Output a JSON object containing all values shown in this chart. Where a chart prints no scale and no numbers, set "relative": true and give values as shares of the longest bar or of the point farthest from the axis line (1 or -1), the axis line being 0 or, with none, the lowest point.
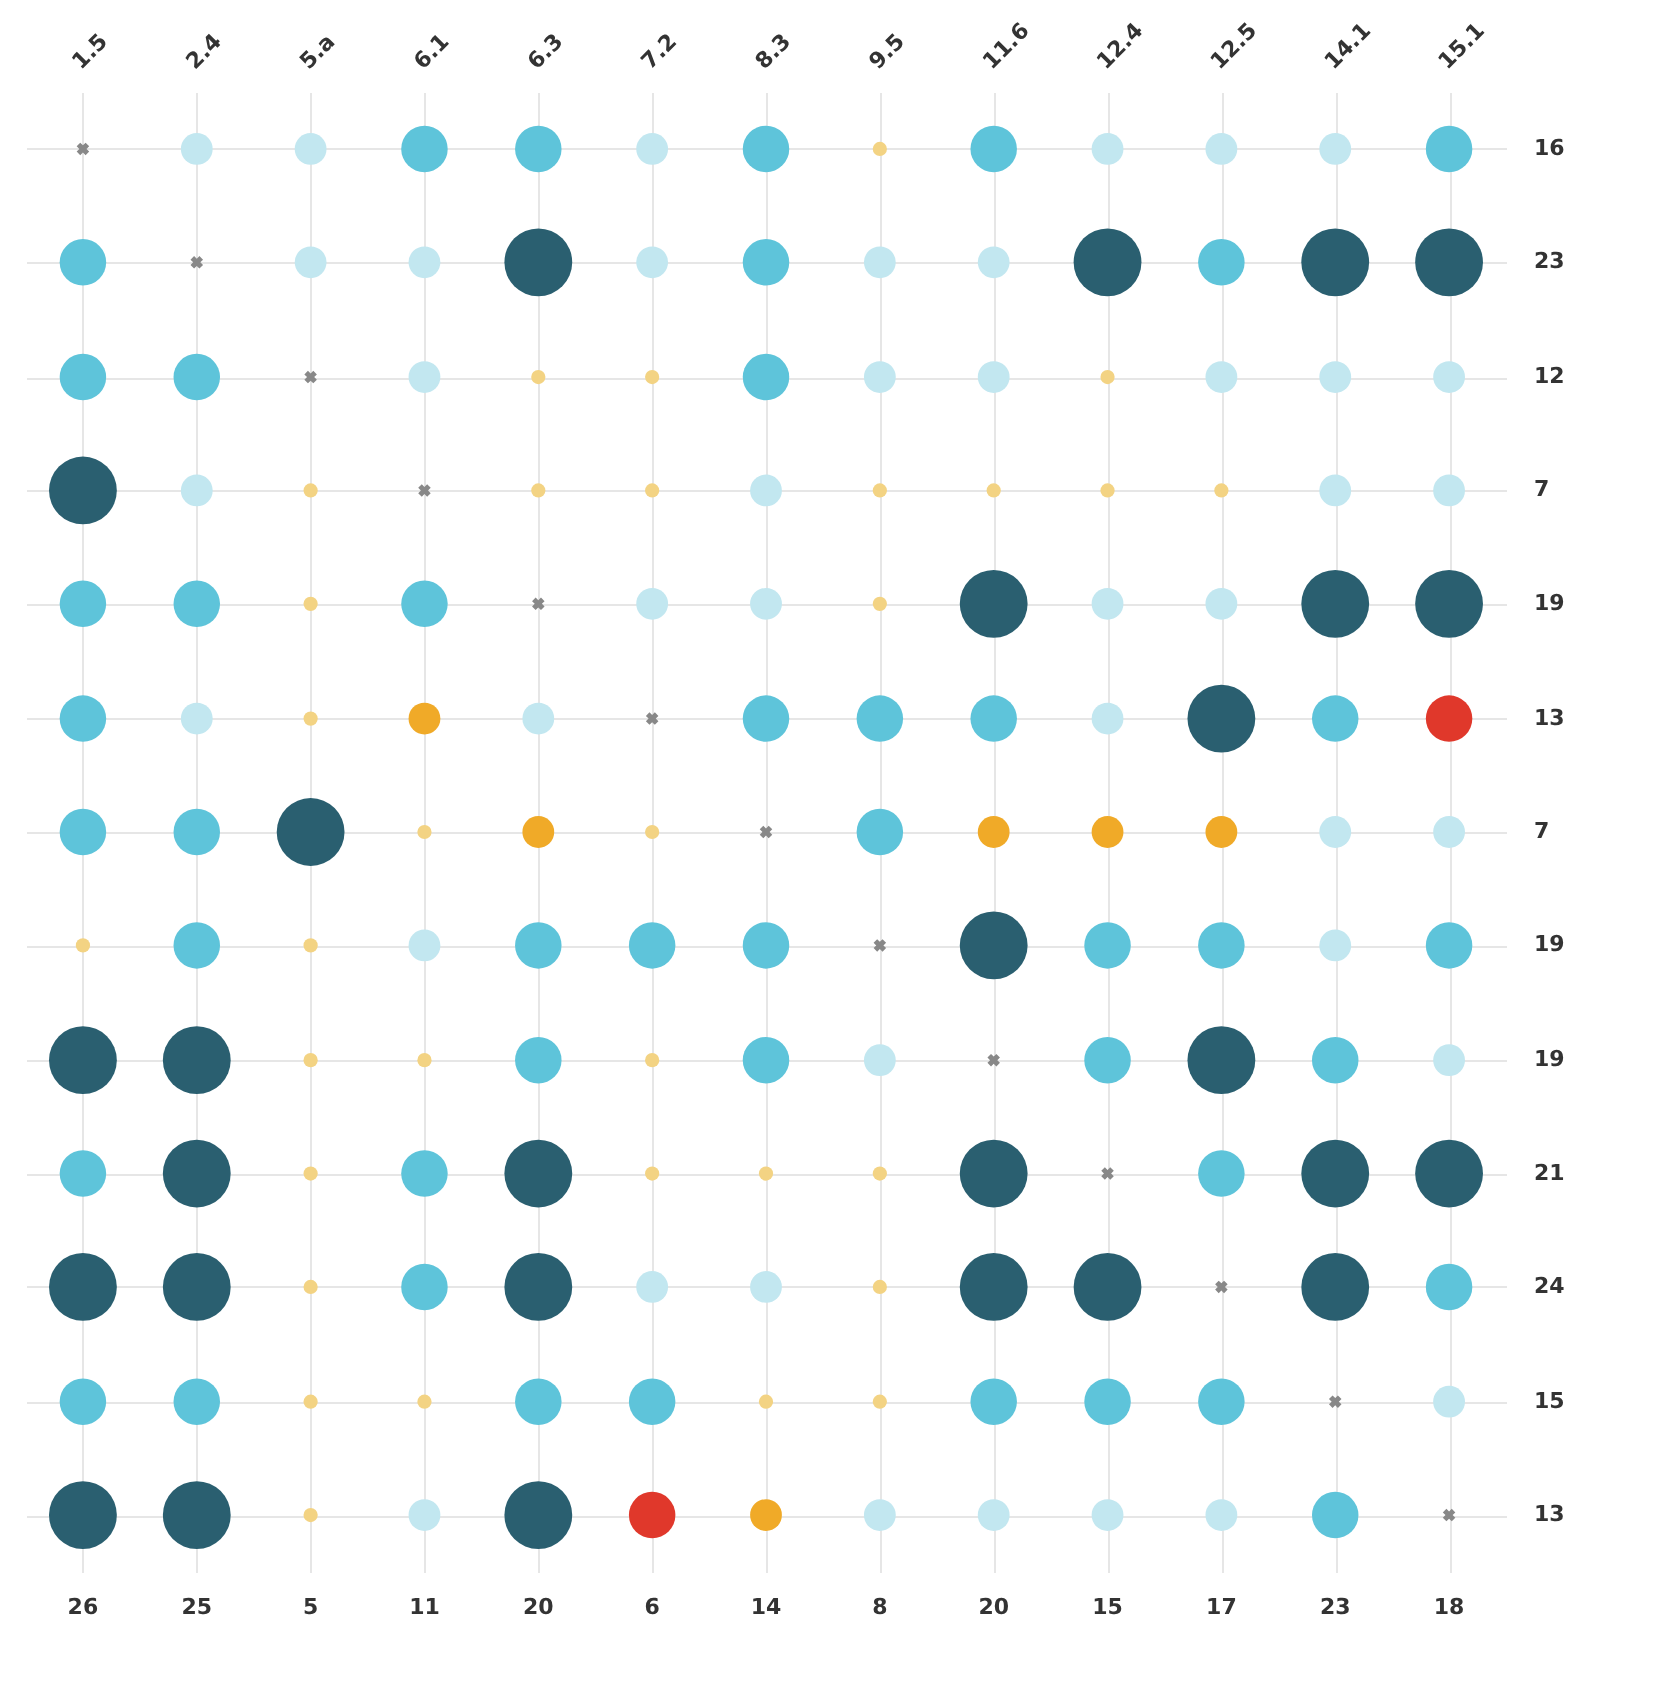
{
  "chart_data": {
    "type": "bubble",
    "categories": [
      "1.5",
      "2.4",
      "5.a",
      "6.1",
      "6.3",
      "7.2",
      "8.3",
      "9.5",
      "11.6",
      "12.4",
      "12.5",
      "14.1",
      "15.1"
    ],
    "relative": true,
    "series": [
      {
        "color": "#2a5f70",
        "x": [
          "6.3",
          "12.4",
          "14.1",
          "15.1",
          "1.5",
          "11.6",
          "14.1",
          "15.1",
          "12.5",
          "5.a",
          "11.6",
          "1.5",
          "2.4",
          "12.5",
          "2.4",
          "6.3",
          "11.6",
          "14.1",
          "15.1",
          "1.5",
          "2.4",
          "6.3",
          "11.6",
          "12.4",
          "14.1",
          "1.5",
          "2.4",
          "6.3"
        ],
        "values": [
          0.917,
          0.917,
          0.917,
          0.917,
          0.75,
          0.667,
          0.667,
          0.667,
          0.583,
          0.5,
          0.417,
          0.333,
          0.333,
          0.333,
          0.25,
          0.25,
          0.25,
          0.25,
          0.25,
          0.167,
          0.167,
          0.167,
          0.167,
          0.167,
          0.167,
          0,
          0,
          0
        ],
        "sizes": [
          1,
          1,
          1,
          1,
          1,
          1,
          1,
          1,
          1,
          1,
          1,
          1,
          1,
          1,
          1,
          1,
          1,
          1,
          1,
          1,
          1,
          1,
          1,
          1,
          1,
          1,
          1,
          1
        ]
      },
      {
        "color": "#5ec4da",
        "x": [
          "6.1",
          "6.3",
          "8.3",
          "11.6",
          "15.1",
          "1.5",
          "8.3",
          "12.5",
          "1.5",
          "2.4",
          "8.3",
          "1.5",
          "2.4",
          "6.1",
          "1.5",
          "8.3",
          "9.5",
          "11.6",
          "14.1",
          "1.5",
          "2.4",
          "9.5",
          "2.4",
          "6.3",
          "7.2",
          "8.3",
          "12.4",
          "12.5",
          "15.1",
          "6.3",
          "8.3",
          "12.4",
          "14.1",
          "1.5",
          "6.1",
          "12.5",
          "6.1",
          "15.1",
          "1.5",
          "2.4",
          "6.3",
          "7.2",
          "11.6",
          "12.4",
          "12.5",
          "14.1"
        ],
        "values": [
          1,
          1,
          1,
          1,
          1,
          0.917,
          0.917,
          0.917,
          0.833,
          0.833,
          0.833,
          0.667,
          0.667,
          0.667,
          0.583,
          0.583,
          0.583,
          0.583,
          0.583,
          0.5,
          0.5,
          0.5,
          0.417,
          0.417,
          0.417,
          0.417,
          0.417,
          0.417,
          0.417,
          0.333,
          0.333,
          0.333,
          0.333,
          0.25,
          0.25,
          0.25,
          0.167,
          0.167,
          0.083,
          0.083,
          0.083,
          0.083,
          0.083,
          0.083,
          0.083,
          0
        ],
        "sizes": [
          0.47,
          0.47,
          0.47,
          0.47,
          0.47,
          0.47,
          0.47,
          0.47,
          0.47,
          0.47,
          0.47,
          0.47,
          0.47,
          0.47,
          0.47,
          0.47,
          0.47,
          0.47,
          0.47,
          0.47,
          0.47,
          0.47,
          0.47,
          0.47,
          0.47,
          0.47,
          0.47,
          0.47,
          0.47,
          0.47,
          0.47,
          0.47,
          0.47,
          0.47,
          0.47,
          0.47,
          0.47,
          0.47,
          0.47,
          0.47,
          0.47,
          0.47,
          0.47,
          0.47,
          0.47,
          0.47
        ]
      },
      {
        "color": "#c2e7f0",
        "x": [
          "2.4",
          "5.a",
          "7.2",
          "12.4",
          "12.5",
          "14.1",
          "5.a",
          "6.1",
          "7.2",
          "9.5",
          "11.6",
          "6.1",
          "9.5",
          "11.6",
          "12.5",
          "14.1",
          "15.1",
          "2.4",
          "8.3",
          "14.1",
          "15.1",
          "7.2",
          "8.3",
          "12.4",
          "12.5",
          "2.4",
          "6.3",
          "12.4",
          "14.1",
          "15.1",
          "6.1",
          "14.1",
          "9.5",
          "15.1",
          "7.2",
          "8.3",
          "15.1",
          "6.1",
          "9.5",
          "11.6",
          "12.4",
          "12.5"
        ],
        "values": [
          1,
          1,
          1,
          1,
          1,
          1,
          0.917,
          0.917,
          0.917,
          0.917,
          0.917,
          0.833,
          0.833,
          0.833,
          0.833,
          0.833,
          0.833,
          0.75,
          0.75,
          0.75,
          0.75,
          0.667,
          0.667,
          0.667,
          0.667,
          0.583,
          0.583,
          0.583,
          0.5,
          0.5,
          0.417,
          0.417,
          0.333,
          0.333,
          0.167,
          0.167,
          0.083,
          0,
          0,
          0,
          0,
          0
        ],
        "sizes": [
          0.22,
          0.22,
          0.22,
          0.22,
          0.22,
          0.22,
          0.22,
          0.22,
          0.22,
          0.22,
          0.22,
          0.22,
          0.22,
          0.22,
          0.22,
          0.22,
          0.22,
          0.22,
          0.22,
          0.22,
          0.22,
          0.22,
          0.22,
          0.22,
          0.22,
          0.22,
          0.22,
          0.22,
          0.22,
          0.22,
          0.22,
          0.22,
          0.22,
          0.22,
          0.22,
          0.22,
          0.22,
          0.22,
          0.22,
          0.22,
          0.22,
          0.22
        ]
      },
      {
        "color": "#f3d383",
        "x": [
          "9.5",
          "6.3",
          "7.2",
          "12.4",
          "5.a",
          "6.3",
          "7.2",
          "9.5",
          "11.6",
          "12.4",
          "12.5",
          "5.a",
          "9.5",
          "5.a",
          "6.1",
          "7.2",
          "1.5",
          "5.a",
          "5.a",
          "6.1",
          "7.2",
          "5.a",
          "7.2",
          "8.3",
          "9.5",
          "5.a",
          "9.5",
          "5.a",
          "6.1",
          "8.3",
          "9.5",
          "5.a"
        ],
        "values": [
          1,
          0.833,
          0.833,
          0.833,
          0.75,
          0.75,
          0.75,
          0.75,
          0.75,
          0.75,
          0.75,
          0.667,
          0.667,
          0.583,
          0.5,
          0.5,
          0.417,
          0.417,
          0.333,
          0.333,
          0.333,
          0.25,
          0.25,
          0.25,
          0.25,
          0.167,
          0.167,
          0.083,
          0.083,
          0.083,
          0.083,
          0
        ],
        "sizes": [
          0.044,
          0.044,
          0.044,
          0.044,
          0.044,
          0.044,
          0.044,
          0.044,
          0.044,
          0.044,
          0.044,
          0.044,
          0.044,
          0.044,
          0.044,
          0.044,
          0.044,
          0.044,
          0.044,
          0.044,
          0.044,
          0.044,
          0.044,
          0.044,
          0.044,
          0.044,
          0.044,
          0.044,
          0.044,
          0.044,
          0.044,
          0.044
        ]
      },
      {
        "color": "#f0aa28",
        "x": [
          "6.1",
          "6.3",
          "11.6",
          "12.4",
          "12.5",
          "8.3"
        ],
        "values": [
          0.583,
          0.5,
          0.5,
          0.5,
          0.5,
          0
        ],
        "sizes": [
          0.22,
          0.22,
          0.22,
          0.22,
          0.22,
          0.22
        ]
      },
      {
        "color": "#e0382b",
        "x": [
          "15.1",
          "7.2"
        ],
        "values": [
          0.583,
          0
        ],
        "sizes": [
          0.47,
          0.47
        ]
      },
      {
        "type": "scatter",
        "marker": "cross",
        "color": "#888888",
        "x": [
          "1.5",
          "2.4",
          "5.a",
          "6.1",
          "6.3",
          "7.2",
          "8.3",
          "9.5",
          "11.6",
          "12.4",
          "12.5",
          "14.1",
          "15.1"
        ],
        "values": [
          1,
          0.917,
          0.833,
          0.75,
          0.667,
          0.583,
          0.5,
          0.417,
          0.333,
          0.25,
          0.167,
          0.083,
          0
        ]
      }
    ],
    "annotations": [
      "16",
      "23",
      "12",
      "7",
      "19",
      "13",
      "7",
      "19",
      "19",
      "21",
      "24",
      "15",
      "13",
      "26",
      "25",
      "5",
      "11",
      "20",
      "6",
      "14",
      "8",
      "20",
      "15",
      "17",
      "23",
      "18"
    ],
    "grid": true
  }
}
